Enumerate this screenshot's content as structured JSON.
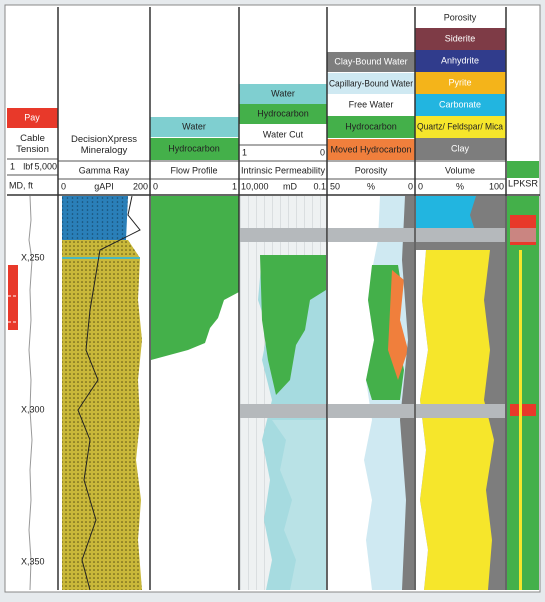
{
  "tracks": [
    {
      "pay": "Pay",
      "curve": "Cable Tension",
      "scale": {
        "min": "1",
        "unit": "lbf",
        "max": "5,000"
      },
      "index": "MD, ft",
      "depths": [
        "X,250",
        "X,300",
        "X,350"
      ]
    },
    {
      "title": "DecisionXpress Mineralogy",
      "curve": "Gamma Ray",
      "scale": {
        "min": "0",
        "unit": "gAPI",
        "max": "200"
      }
    },
    {
      "legend": [
        "Water",
        "Hydrocarbon"
      ],
      "title": "Flow Profile",
      "scale": {
        "min": "0",
        "max": "1"
      }
    },
    {
      "legend": [
        "Water",
        "Hydrocarbon"
      ],
      "curve": "Water Cut",
      "curve_scale": {
        "min": "1",
        "max": "0"
      },
      "title": "Intrinsic Permeability",
      "scale": {
        "min": "10,000",
        "unit": "mD",
        "max": "0.1"
      }
    },
    {
      "legend": [
        "Clay-Bound Water",
        "Capillary-Bound Water",
        "Free Water",
        "Hydrocarbon",
        "Moved Hydrocarbon"
      ],
      "title": "Porosity",
      "scale": {
        "min": "50",
        "unit": "%",
        "max": "0"
      }
    },
    {
      "legend": [
        "Porosity",
        "Siderite",
        "Anhydrite",
        "Pyrite",
        "Carbonate",
        "Quartz/ Feldspar/ Mica",
        "Clay"
      ],
      "title": "Volume",
      "scale": {
        "min": "0",
        "unit": "%",
        "max": "100"
      }
    },
    {
      "title": "LPKSR"
    }
  ]
}
